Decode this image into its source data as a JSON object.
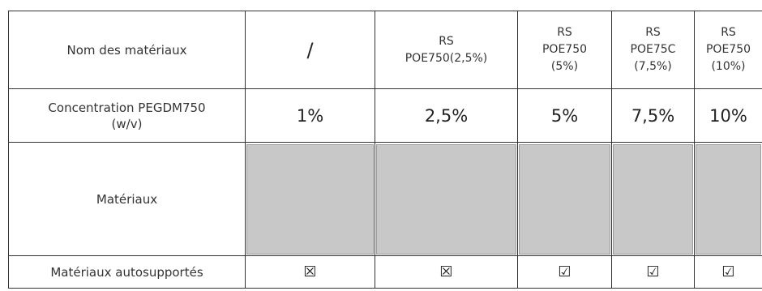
{
  "header_row": {
    "label": "Nom des matériaux",
    "values": [
      "/",
      "RS\nPOE750(2,5%)",
      "RS\nPOE750\n(5%)",
      "RS\nPOE75C\n(7,5%)",
      "RS\nPOE750\n(10%)"
    ]
  },
  "concentration_row": {
    "label": "Concentration PEGDM750\n(w/v)",
    "values": [
      "1%",
      "2,5%",
      "5%",
      "7,5%",
      "10%"
    ]
  },
  "materials_row": {
    "label": "Matériaux"
  },
  "autosupport_row": {
    "label": "Matériaux autosupportés",
    "values": [
      "☒",
      "☒",
      "☑",
      "☑",
      "☑"
    ]
  }
}
